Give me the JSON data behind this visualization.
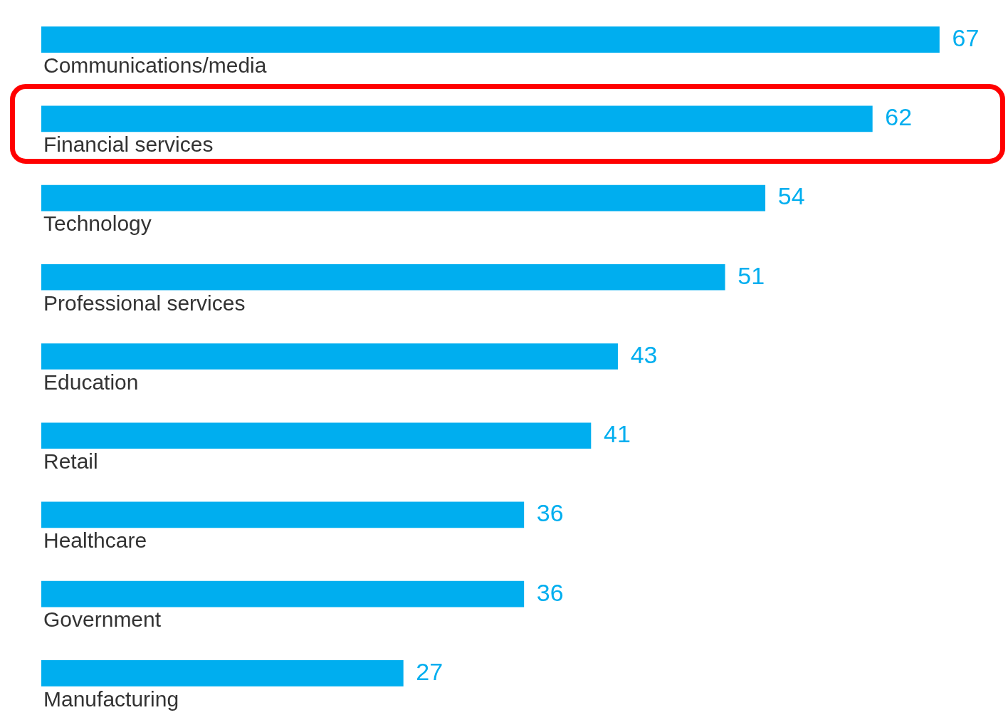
{
  "chart_data": {
    "type": "bar",
    "orientation": "horizontal",
    "categories": [
      "Communications/media",
      "Financial services",
      "Technology",
      "Professional services",
      "Education",
      "Retail",
      "Healthcare",
      "Government",
      "Manufacturing"
    ],
    "values": [
      67,
      62,
      54,
      51,
      43,
      41,
      36,
      36,
      27
    ],
    "color": "#00aeef",
    "data_labels": true,
    "tick_labels": false
  }
}
